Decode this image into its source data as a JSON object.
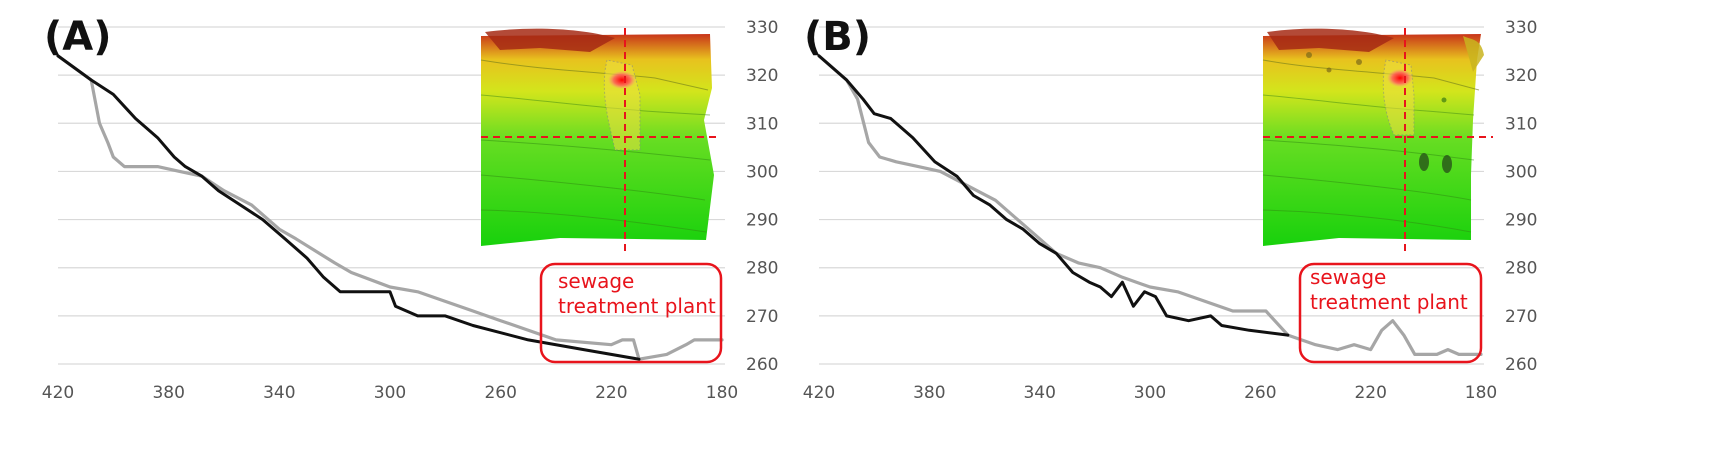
{
  "panels": [
    {
      "letter": "(A)",
      "annotation_line1": "sewage",
      "annotation_line2": "treatment plant"
    },
    {
      "letter": "(B)",
      "annotation_line1": "sewage",
      "annotation_line2": "treatment plant"
    }
  ],
  "colors": {
    "series_dark": "#111111",
    "series_light": "#a6a6a6",
    "annotation": "#e8141c",
    "grid": "#d9d9d9"
  },
  "chart_data": [
    {
      "type": "line",
      "title": "(A)",
      "xlim": [
        420,
        180
      ],
      "x_ticks": [
        420,
        380,
        340,
        300,
        260,
        220,
        180
      ],
      "ylim": [
        260,
        330
      ],
      "y_ticks": [
        260,
        270,
        280,
        290,
        300,
        310,
        320,
        330
      ],
      "y_axis_side": "right",
      "grid": true,
      "series": [
        {
          "color": "#111111",
          "points": [
            [
              420,
              324
            ],
            [
              408,
              319
            ],
            [
              400,
              316
            ],
            [
              392,
              311
            ],
            [
              384,
              307
            ],
            [
              378,
              303
            ],
            [
              374,
              301
            ],
            [
              368,
              299
            ],
            [
              362,
              296
            ],
            [
              354,
              293
            ],
            [
              346,
              290
            ],
            [
              338,
              286
            ],
            [
              330,
              282
            ],
            [
              324,
              278
            ],
            [
              318,
              275
            ],
            [
              300,
              275
            ],
            [
              298,
              272
            ],
            [
              290,
              270
            ],
            [
              280,
              270
            ],
            [
              270,
              268
            ],
            [
              250,
              265
            ],
            [
              230,
              263
            ],
            [
              210,
              261
            ]
          ]
        },
        {
          "color": "#a6a6a6",
          "points": [
            [
              420,
              324
            ],
            [
              408,
              319
            ],
            [
              405,
              310
            ],
            [
              402,
              306
            ],
            [
              400,
              303
            ],
            [
              396,
              301
            ],
            [
              392,
              301
            ],
            [
              384,
              301
            ],
            [
              376,
              300
            ],
            [
              368,
              299
            ],
            [
              360,
              296
            ],
            [
              350,
              293
            ],
            [
              340,
              288
            ],
            [
              334,
              286
            ],
            [
              320,
              281
            ],
            [
              314,
              279
            ],
            [
              300,
              276
            ],
            [
              290,
              275
            ],
            [
              280,
              273
            ],
            [
              270,
              271
            ],
            [
              260,
              269
            ],
            [
              250,
              267
            ],
            [
              240,
              265
            ],
            [
              220,
              264
            ],
            [
              216,
              265
            ],
            [
              212,
              265
            ],
            [
              210,
              261
            ],
            [
              200,
              262
            ],
            [
              193,
              264
            ],
            [
              190,
              265
            ],
            [
              180,
              265
            ]
          ]
        }
      ]
    },
    {
      "type": "line",
      "title": "(B)",
      "xlim": [
        420,
        180
      ],
      "x_ticks": [
        420,
        380,
        340,
        300,
        260,
        220,
        180
      ],
      "ylim": [
        260,
        330
      ],
      "y_ticks": [
        260,
        270,
        280,
        290,
        300,
        310,
        320,
        330
      ],
      "y_axis_side": "right",
      "grid": true,
      "series": [
        {
          "color": "#111111",
          "points": [
            [
              420,
              324
            ],
            [
              410,
              319
            ],
            [
              404,
              315
            ],
            [
              400,
              312
            ],
            [
              394,
              311
            ],
            [
              386,
              307
            ],
            [
              378,
              302
            ],
            [
              370,
              299
            ],
            [
              364,
              295
            ],
            [
              358,
              293
            ],
            [
              352,
              290
            ],
            [
              346,
              288
            ],
            [
              340,
              285
            ],
            [
              334,
              283
            ],
            [
              328,
              279
            ],
            [
              322,
              277
            ],
            [
              318,
              276
            ],
            [
              314,
              274
            ],
            [
              310,
              277
            ],
            [
              306,
              272
            ],
            [
              302,
              275
            ],
            [
              298,
              274
            ],
            [
              294,
              270
            ],
            [
              286,
              269
            ],
            [
              278,
              270
            ],
            [
              274,
              268
            ],
            [
              264,
              267
            ],
            [
              250,
              266
            ]
          ]
        },
        {
          "color": "#a6a6a6",
          "points": [
            [
              420,
              324
            ],
            [
              410,
              319
            ],
            [
              406,
              315
            ],
            [
              402,
              306
            ],
            [
              398,
              303
            ],
            [
              392,
              302
            ],
            [
              384,
              301
            ],
            [
              376,
              300
            ],
            [
              366,
              297
            ],
            [
              356,
              294
            ],
            [
              348,
              290
            ],
            [
              340,
              286
            ],
            [
              334,
              283
            ],
            [
              326,
              281
            ],
            [
              318,
              280
            ],
            [
              310,
              278
            ],
            [
              300,
              276
            ],
            [
              290,
              275
            ],
            [
              280,
              273
            ],
            [
              270,
              271
            ],
            [
              258,
              271
            ],
            [
              250,
              266
            ],
            [
              240,
              264
            ],
            [
              232,
              263
            ],
            [
              226,
              264
            ],
            [
              220,
              263
            ],
            [
              216,
              267
            ],
            [
              212,
              269
            ],
            [
              208,
              266
            ],
            [
              204,
              262
            ],
            [
              196,
              262
            ],
            [
              192,
              263
            ],
            [
              188,
              262
            ],
            [
              180,
              262
            ]
          ]
        }
      ]
    }
  ]
}
